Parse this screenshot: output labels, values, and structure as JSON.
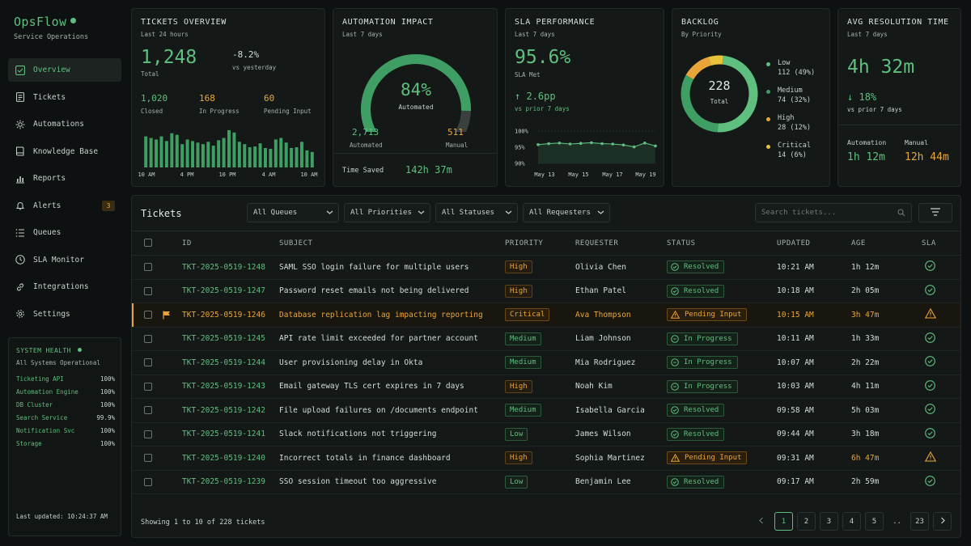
{
  "app": {
    "name": "OpsFlow",
    "subtitle": "Service Operations"
  },
  "sidebar": {
    "items": [
      {
        "label": "Overview",
        "icon": "overview-icon",
        "active": true
      },
      {
        "label": "Tickets",
        "icon": "ticket-icon"
      },
      {
        "label": "Automations",
        "icon": "automation-icon"
      },
      {
        "label": "Knowledge Base",
        "icon": "book-icon"
      },
      {
        "label": "Reports",
        "icon": "chart-icon"
      },
      {
        "label": "Alerts",
        "icon": "bell-icon",
        "badge": "3"
      },
      {
        "label": "Queues",
        "icon": "list-icon"
      },
      {
        "label": "SLA Monitor",
        "icon": "clock-icon"
      },
      {
        "label": "Integrations",
        "icon": "link-icon"
      },
      {
        "label": "Settings",
        "icon": "gear-icon"
      }
    ],
    "health": {
      "title": "SYSTEM HEALTH",
      "status": "All Systems Operational",
      "services": [
        {
          "name": "Ticketing API",
          "value": "100%"
        },
        {
          "name": "Automation Engine",
          "value": "100%"
        },
        {
          "name": "DB Cluster",
          "value": "100%"
        },
        {
          "name": "Search Service",
          "value": "99.9%"
        },
        {
          "name": "Notification Svc",
          "value": "100%"
        },
        {
          "name": "Storage",
          "value": "100%"
        }
      ],
      "updated": "Last updated: 10:24:37 AM"
    }
  },
  "cards": {
    "overview": {
      "title": "TICKETS OVERVIEW",
      "period": "Last 24 hours",
      "total": "1,248",
      "total_label": "Total",
      "change": "-8.2%",
      "change_label": "vs yesterday",
      "closed": "1,020",
      "closed_label": "Closed",
      "in_progress": "168",
      "in_progress_label": "In Progress",
      "pending": "60",
      "pending_label": "Pending Input",
      "x_ticks": [
        "10 AM",
        "4 PM",
        "10 PM",
        "4 AM",
        "10 AM"
      ]
    },
    "automation": {
      "title": "AUTOMATION IMPACT",
      "period": "Last 7 days",
      "percent": "84%",
      "percent_value": 84,
      "percent_label": "Automated",
      "automated": "2,713",
      "automated_label": "Automated",
      "manual": "511",
      "manual_label": "Manual",
      "time_saved_label": "Time Saved",
      "time_saved": "142h 37m"
    },
    "sla": {
      "title": "SLA PERFORMANCE",
      "period": "Last 7 days",
      "value": "95.6%",
      "value_label": "SLA Met",
      "change": "2.6pp",
      "change_label": "vs prior 7 days",
      "y_ticks": [
        "100%",
        "95%",
        "90%"
      ],
      "x_ticks": [
        "May 13",
        "May 15",
        "May 17",
        "May 19"
      ]
    },
    "backlog": {
      "title": "BACKLOG",
      "subtitle": "By Priority",
      "total": "228",
      "total_label": "Total",
      "items": [
        {
          "label": "Low",
          "value": "112 (49%)",
          "color": "#5fbf7e",
          "share": 49
        },
        {
          "label": "Medium",
          "value": "74 (32%)",
          "color": "#3f9e63",
          "share": 32
        },
        {
          "label": "High",
          "value": "28 (12%)",
          "color": "#e8a63a",
          "share": 12
        },
        {
          "label": "Critical",
          "value": "14 (6%)",
          "color": "#e8c23a",
          "share": 6
        }
      ]
    },
    "resolution": {
      "title": "AVG RESOLUTION TIME",
      "period": "Last 7 days",
      "value": "4h 32m",
      "change": "18%",
      "change_label": "vs prior 7 days",
      "automation_label": "Automation",
      "automation_value": "1h 12m",
      "manual_label": "Manual",
      "manual_value": "12h 44m"
    }
  },
  "tickets": {
    "title": "Tickets",
    "filters": [
      "All Queues",
      "All Priorities",
      "All Statuses",
      "All Requesters"
    ],
    "search_placeholder": "Search tickets...",
    "columns": [
      "ID",
      "SUBJECT",
      "PRIORITY",
      "REQUESTER",
      "STATUS",
      "UPDATED",
      "AGE",
      "SLA"
    ],
    "rows": [
      {
        "id": "TKT-2025-0519-1248",
        "subject": "SAML SSO login failure for multiple users",
        "priority": "High",
        "requester": "Olivia Chen",
        "status": "Resolved",
        "updated": "10:21 AM",
        "age": "1h 12m",
        "sla": "ok"
      },
      {
        "id": "TKT-2025-0519-1247",
        "subject": "Password reset emails not being delivered",
        "priority": "High",
        "requester": "Ethan Patel",
        "status": "Resolved",
        "updated": "10:18 AM",
        "age": "2h 05m",
        "sla": "ok"
      },
      {
        "id": "TKT-2025-0519-1246",
        "subject": "Database replication lag impacting reporting",
        "priority": "Critical",
        "requester": "Ava Thompson",
        "status": "Pending Input",
        "updated": "10:15 AM",
        "age": "3h 47m",
        "sla": "warn",
        "flagged": true
      },
      {
        "id": "TKT-2025-0519-1245",
        "subject": "API rate limit exceeded for partner account",
        "priority": "Medium",
        "requester": "Liam Johnson",
        "status": "In Progress",
        "updated": "10:11 AM",
        "age": "1h 33m",
        "sla": "ok"
      },
      {
        "id": "TKT-2025-0519-1244",
        "subject": "User provisioning delay in Okta",
        "priority": "Medium",
        "requester": "Mia Rodriguez",
        "status": "In Progress",
        "updated": "10:07 AM",
        "age": "2h 22m",
        "sla": "ok"
      },
      {
        "id": "TKT-2025-0519-1243",
        "subject": "Email gateway TLS cert expires in 7 days",
        "priority": "High",
        "requester": "Noah Kim",
        "status": "In Progress",
        "updated": "10:03 AM",
        "age": "4h 11m",
        "sla": "ok"
      },
      {
        "id": "TKT-2025-0519-1242",
        "subject": "File upload failures on /documents endpoint",
        "priority": "Medium",
        "requester": "Isabella Garcia",
        "status": "Resolved",
        "updated": "09:58 AM",
        "age": "5h 03m",
        "sla": "ok"
      },
      {
        "id": "TKT-2025-0519-1241",
        "subject": "Slack notifications not triggering",
        "priority": "Low",
        "requester": "James Wilson",
        "status": "Resolved",
        "updated": "09:44 AM",
        "age": "3h 18m",
        "sla": "ok"
      },
      {
        "id": "TKT-2025-0519-1240",
        "subject": "Incorrect totals in finance dashboard",
        "priority": "High",
        "requester": "Sophia Martinez",
        "status": "Pending Input",
        "updated": "09:31 AM",
        "age": "6h 47m",
        "sla": "warn"
      },
      {
        "id": "TKT-2025-0519-1239",
        "subject": "SSO session timeout too aggressive",
        "priority": "Low",
        "requester": "Benjamin Lee",
        "status": "Resolved",
        "updated": "09:17 AM",
        "age": "2h 59m",
        "sla": "ok"
      }
    ],
    "footer": "Showing 1 to 10 of 228 tickets",
    "pages": [
      "1",
      "2",
      "3",
      "4",
      "5",
      "..",
      "23"
    ],
    "current_page": "1"
  },
  "chart_data": [
    {
      "type": "bar",
      "title": "TICKETS OVERVIEW",
      "x_ticks": [
        "10 AM",
        "4 PM",
        "10 PM",
        "4 AM",
        "10 AM"
      ],
      "values": [
        40,
        38,
        36,
        40,
        34,
        44,
        42,
        30,
        36,
        34,
        32,
        30,
        33,
        28,
        35,
        38,
        48,
        45,
        33,
        30,
        26,
        27,
        31,
        25,
        24,
        36,
        38,
        32,
        25,
        26,
        33,
        22,
        20
      ],
      "ylim": [
        0,
        50
      ]
    },
    {
      "type": "area",
      "title": "SLA PERFORMANCE",
      "x_ticks": [
        "May 13",
        "May 15",
        "May 17",
        "May 19"
      ],
      "y_ticks": [
        "100%",
        "95%",
        "90%"
      ],
      "ylim": [
        90,
        100
      ],
      "values": [
        95.8,
        96.1,
        96.3,
        96.0,
        96.2,
        96.4,
        96.1,
        96.0,
        95.7,
        95.1,
        96.3,
        95.4
      ]
    },
    {
      "type": "pie",
      "title": "BACKLOG",
      "categories": [
        "Low",
        "Medium",
        "High",
        "Critical"
      ],
      "values": [
        112,
        74,
        28,
        14
      ]
    }
  ]
}
